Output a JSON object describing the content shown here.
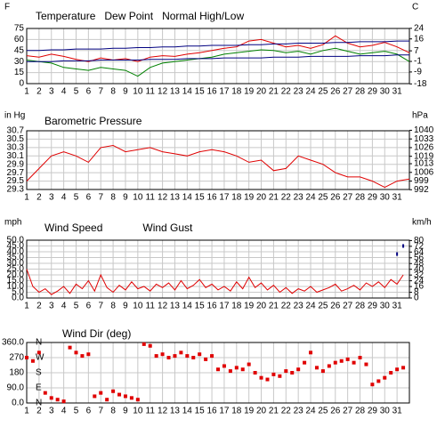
{
  "chart_data": [
    {
      "type": "line",
      "y_label": "F",
      "y2_label": "C",
      "x": [
        1,
        2,
        3,
        4,
        5,
        6,
        7,
        8,
        9,
        10,
        11,
        12,
        13,
        14,
        15,
        16,
        17,
        18,
        19,
        20,
        21,
        22,
        23,
        24,
        25,
        26,
        27,
        28,
        29,
        30,
        31,
        32
      ],
      "series": [
        {
          "name": "Temperature",
          "color": "#e00000",
          "values": [
            38,
            36,
            40,
            37,
            33,
            30,
            35,
            32,
            34,
            30,
            36,
            38,
            37,
            40,
            42,
            45,
            48,
            50,
            58,
            60,
            55,
            50,
            52,
            48,
            53,
            65,
            55,
            50,
            52,
            56,
            50,
            42
          ]
        },
        {
          "name": "Dew Point",
          "color": "#008000",
          "values": [
            32,
            30,
            28,
            22,
            20,
            18,
            22,
            20,
            18,
            10,
            22,
            28,
            30,
            32,
            34,
            36,
            40,
            42,
            44,
            46,
            45,
            42,
            44,
            40,
            45,
            48,
            44,
            40,
            42,
            44,
            40,
            30
          ]
        },
        {
          "name": "Normal High/Low",
          "color": "#000080",
          "values": [
            45,
            45,
            46,
            46,
            47,
            47,
            47,
            48,
            48,
            49,
            49,
            50,
            50,
            51,
            51,
            52,
            52,
            52,
            53,
            53,
            54,
            54,
            55,
            55,
            55,
            56,
            56,
            57,
            57,
            57,
            58,
            58
          ],
          "low": [
            30,
            30,
            30,
            31,
            31,
            31,
            32,
            32,
            32,
            32,
            33,
            33,
            33,
            34,
            34,
            34,
            35,
            35,
            35,
            35,
            36,
            36,
            36,
            37,
            37,
            37,
            37,
            38,
            38,
            38,
            39,
            39
          ]
        }
      ],
      "xlim": [
        1,
        32
      ],
      "xticks": [
        1,
        2,
        3,
        4,
        5,
        6,
        7,
        8,
        9,
        10,
        11,
        12,
        13,
        14,
        15,
        16,
        17,
        18,
        19,
        20,
        21,
        22,
        23,
        24,
        25,
        26,
        27,
        28,
        29,
        30,
        31
      ],
      "ylim": [
        0,
        75
      ],
      "yticks": [
        0,
        15,
        30,
        45,
        60,
        75
      ],
      "y2lim": [
        -17.8,
        23.9
      ],
      "y2ticks": [
        -18,
        -9,
        -1,
        7,
        16,
        24
      ],
      "grid": true
    },
    {
      "type": "line",
      "title": "Barometric Pressure",
      "title_color": "#e00000",
      "y_label": "in Hg",
      "y2_label": "hPa",
      "x": [
        1,
        2,
        3,
        4,
        5,
        6,
        7,
        8,
        9,
        10,
        11,
        12,
        13,
        14,
        15,
        16,
        17,
        18,
        19,
        20,
        21,
        22,
        23,
        24,
        25,
        26,
        27,
        28,
        29,
        30,
        31,
        32
      ],
      "series": [
        {
          "name": "Barometric Pressure",
          "color": "#e00000",
          "values": [
            29.5,
            29.8,
            30.1,
            30.2,
            30.1,
            29.95,
            30.3,
            30.35,
            30.2,
            30.25,
            30.3,
            30.2,
            30.15,
            30.1,
            30.2,
            30.25,
            30.2,
            30.1,
            29.95,
            30.0,
            29.75,
            29.8,
            30.1,
            30.0,
            29.9,
            29.7,
            29.6,
            29.6,
            29.5,
            29.35,
            29.5,
            29.55
          ]
        }
      ],
      "xlim": [
        1,
        32
      ],
      "xticks": [
        1,
        2,
        3,
        4,
        5,
        6,
        7,
        8,
        9,
        10,
        11,
        12,
        13,
        14,
        15,
        16,
        17,
        18,
        19,
        20,
        21,
        22,
        23,
        24,
        25,
        26,
        27,
        28,
        29,
        30,
        31
      ],
      "ylim": [
        29.3,
        30.7
      ],
      "yticks": [
        29.3,
        29.5,
        29.7,
        29.9,
        30.1,
        30.3,
        30.5,
        30.7
      ],
      "y2lim": [
        992.2,
        1039.6
      ],
      "y2ticks": [
        992,
        999,
        1006,
        1013,
        1019,
        1026,
        1033,
        1040
      ],
      "grid": true
    },
    {
      "type": "line",
      "y_label": "mph",
      "y2_label": "km/h",
      "x": [
        1,
        1.5,
        2,
        2.5,
        3,
        3.5,
        4,
        4.5,
        5,
        5.5,
        6,
        6.5,
        7,
        7.5,
        8,
        8.5,
        9,
        9.5,
        10,
        10.5,
        11,
        11.5,
        12,
        12.5,
        13,
        13.5,
        14,
        14.5,
        15,
        15.5,
        16,
        16.5,
        17,
        17.5,
        18,
        18.5,
        19,
        19.5,
        20,
        20.5,
        21,
        21.5,
        22,
        22.5,
        23,
        23.5,
        24,
        24.5,
        25,
        25.5,
        26,
        26.5,
        27,
        27.5,
        28,
        28.5,
        29,
        29.5,
        30,
        30.5,
        31,
        31.5
      ],
      "series": [
        {
          "name": "Wind Speed",
          "color": "#e00000",
          "values": [
            25,
            10,
            5,
            8,
            3,
            6,
            10,
            4,
            12,
            8,
            15,
            6,
            20,
            9,
            5,
            11,
            7,
            14,
            8,
            10,
            6,
            12,
            9,
            13,
            7,
            15,
            8,
            11,
            16,
            9,
            12,
            7,
            10,
            6,
            14,
            8,
            18,
            9,
            13,
            7,
            11,
            5,
            9,
            4,
            8,
            6,
            10,
            5,
            7,
            9,
            12,
            6,
            8,
            11,
            7,
            13,
            10,
            14,
            9,
            16,
            12,
            20
          ]
        },
        {
          "name": "Wind Gust",
          "color": "#000080",
          "markers": true,
          "values": [
            null,
            null,
            null,
            null,
            null,
            null,
            null,
            null,
            null,
            null,
            null,
            null,
            null,
            null,
            null,
            null,
            null,
            null,
            null,
            null,
            null,
            null,
            null,
            null,
            null,
            null,
            null,
            null,
            null,
            null,
            null,
            null,
            null,
            null,
            null,
            null,
            null,
            null,
            null,
            null,
            null,
            null,
            null,
            null,
            null,
            null,
            null,
            null,
            null,
            null,
            null,
            null,
            null,
            null,
            null,
            null,
            null,
            null,
            null,
            null,
            38,
            45
          ]
        }
      ],
      "xlim": [
        1,
        32
      ],
      "xticks": [
        1,
        2,
        3,
        4,
        5,
        6,
        7,
        8,
        9,
        10,
        11,
        12,
        13,
        14,
        15,
        16,
        17,
        18,
        19,
        20,
        21,
        22,
        23,
        24,
        25,
        26,
        27,
        28,
        29,
        30,
        31
      ],
      "ylim": [
        0,
        50
      ],
      "yticks": [
        {
          "value": 0,
          "label": "0.0"
        },
        {
          "value": 5,
          "label": "5.0"
        },
        {
          "value": 10,
          "label": "10.0"
        },
        {
          "value": 15,
          "label": "15.0"
        },
        {
          "value": 20,
          "label": "20.0"
        },
        {
          "value": 25,
          "label": "25.0"
        },
        {
          "value": 30,
          "label": "30.0"
        },
        {
          "value": 35,
          "label": "35.0"
        },
        {
          "value": 40,
          "label": "40.0"
        },
        {
          "value": 45,
          "label": "45.0"
        },
        {
          "value": 50,
          "label": "50.0"
        }
      ],
      "y2lim": [
        0,
        80.5
      ],
      "y2ticks": [
        0,
        8,
        16,
        24,
        32,
        40,
        48,
        56,
        64,
        72,
        80
      ],
      "grid": true
    },
    {
      "type": "scatter",
      "title": "Wind Dir (deg)",
      "title_color": "#e00000",
      "color": "#e00000",
      "x": [
        1,
        1.5,
        2,
        2.5,
        3,
        3.5,
        4,
        4.5,
        5,
        5.5,
        6,
        6.5,
        7,
        7.5,
        8,
        8.5,
        9,
        9.5,
        10,
        10.5,
        11,
        11.5,
        12,
        12.5,
        13,
        13.5,
        14,
        14.5,
        15,
        15.5,
        16,
        16.5,
        17,
        17.5,
        18,
        18.5,
        19,
        19.5,
        20,
        20.5,
        21,
        21.5,
        22,
        22.5,
        23,
        23.5,
        24,
        24.5,
        25,
        25.5,
        26,
        26.5,
        27,
        27.5,
        28,
        28.5,
        29,
        29.5,
        30,
        30.5,
        31,
        31.5
      ],
      "values": [
        270,
        250,
        300,
        60,
        30,
        20,
        10,
        330,
        300,
        280,
        290,
        40,
        60,
        20,
        70,
        50,
        40,
        30,
        20,
        350,
        340,
        280,
        290,
        270,
        280,
        300,
        280,
        270,
        290,
        260,
        280,
        200,
        220,
        190,
        210,
        200,
        230,
        180,
        150,
        140,
        170,
        160,
        190,
        180,
        200,
        240,
        300,
        210,
        190,
        220,
        240,
        250,
        260,
        240,
        270,
        230,
        110,
        130,
        150,
        180,
        200,
        210
      ],
      "xlim": [
        1,
        32
      ],
      "xticks": [
        1,
        2,
        3,
        4,
        5,
        6,
        7,
        8,
        9,
        10,
        11,
        12,
        13,
        14,
        15,
        16,
        17,
        18,
        19,
        20,
        21,
        22,
        23,
        24,
        25,
        26,
        27,
        28,
        29,
        30,
        31
      ],
      "ylim": [
        0,
        360
      ],
      "yticks": [
        {
          "value": 0,
          "label": "0.0"
        },
        {
          "value": 90,
          "label": "90.0"
        },
        180,
        270,
        {
          "value": 360,
          "label": "360.0"
        }
      ],
      "compass": [
        {
          "value": 360,
          "label": "N"
        },
        {
          "value": 270,
          "label": "W"
        },
        {
          "value": 180,
          "label": "S"
        },
        {
          "value": 90,
          "label": "E"
        },
        {
          "value": 0,
          "label": "N"
        }
      ],
      "grid": true
    }
  ]
}
